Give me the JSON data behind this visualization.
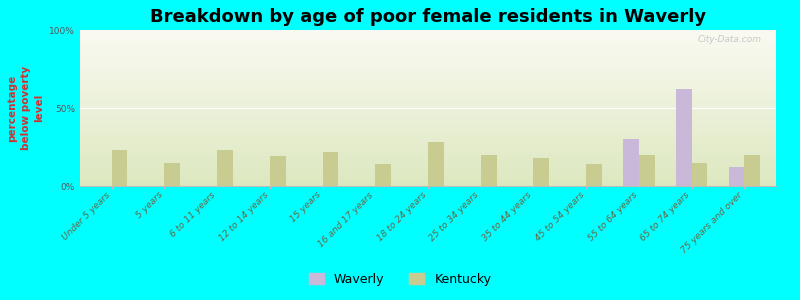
{
  "title": "Breakdown by age of poor female residents in Waverly",
  "ylabel": "percentage\nbelow poverty\nlevel",
  "categories": [
    "Under 5 years",
    "5 years",
    "6 to 11 years",
    "12 to 14 years",
    "15 years",
    "16 and 17 years",
    "18 to 24 years",
    "25 to 34 years",
    "35 to 44 years",
    "45 to 54 years",
    "55 to 64 years",
    "65 to 74 years",
    "75 years and over"
  ],
  "waverly": [
    0,
    0,
    0,
    0,
    0,
    0,
    0,
    0,
    0,
    0,
    30,
    62,
    12
  ],
  "kentucky": [
    23,
    15,
    23,
    19,
    22,
    14,
    28,
    20,
    18,
    14,
    20,
    15,
    20
  ],
  "waverly_color": "#c9b8d8",
  "kentucky_color": "#c8cc90",
  "bg_color": "#00ffff",
  "plot_bg_top": "#fafaf2",
  "plot_bg_bottom": "#dde8c0",
  "ylim": [
    0,
    100
  ],
  "yticks": [
    0,
    50,
    100
  ],
  "ytick_labels": [
    "0%",
    "50%",
    "100%"
  ],
  "bar_width": 0.3,
  "title_fontsize": 13,
  "axis_label_fontsize": 7.5,
  "tick_fontsize": 6.5,
  "legend_waverly": "Waverly",
  "legend_kentucky": "Kentucky"
}
